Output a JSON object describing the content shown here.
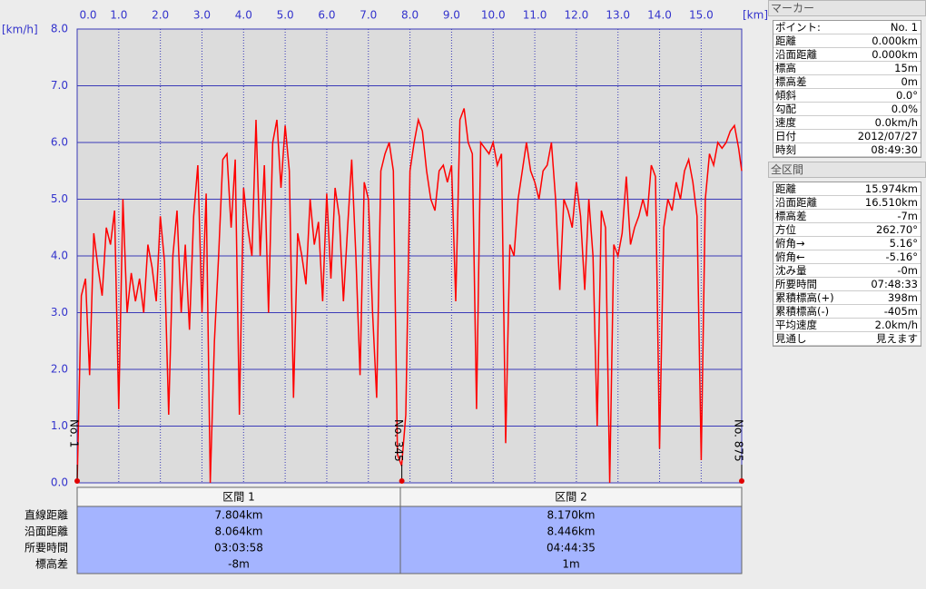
{
  "chart_data": {
    "type": "line",
    "y_unit": "[km/h]",
    "x_unit": "[km]",
    "color": "#ff0000",
    "grid": true,
    "xlim": [
      0,
      15.974
    ],
    "ylim": [
      0,
      8
    ],
    "xticks": [
      {
        "value": 0,
        "label": "0.0"
      },
      {
        "value": 1,
        "label": "1.0"
      },
      {
        "value": 2,
        "label": "2.0"
      },
      {
        "value": 3,
        "label": "3.0"
      },
      {
        "value": 4,
        "label": "4.0"
      },
      {
        "value": 5,
        "label": "5.0"
      },
      {
        "value": 6,
        "label": "6.0"
      },
      {
        "value": 7,
        "label": "7.0"
      },
      {
        "value": 8,
        "label": "8.0"
      },
      {
        "value": 9,
        "label": "9.0"
      },
      {
        "value": 10,
        "label": "10.0"
      },
      {
        "value": 11,
        "label": "11.0"
      },
      {
        "value": 12,
        "label": "12.0"
      },
      {
        "value": 13,
        "label": "13.0"
      },
      {
        "value": 14,
        "label": "14.0"
      },
      {
        "value": 15,
        "label": "15.0"
      }
    ],
    "yticks": [
      {
        "value": 0,
        "label": "0.0"
      },
      {
        "value": 1,
        "label": "1.0"
      },
      {
        "value": 2,
        "label": "2.0"
      },
      {
        "value": 3,
        "label": "3.0"
      },
      {
        "value": 4,
        "label": "4.0"
      },
      {
        "value": 5,
        "label": "5.0"
      },
      {
        "value": 6,
        "label": "6.0"
      },
      {
        "value": 7,
        "label": "7.0"
      },
      {
        "value": 8,
        "label": "8.0"
      }
    ],
    "x": [
      0,
      0.1,
      0.2,
      0.3,
      0.4,
      0.5,
      0.6,
      0.7,
      0.8,
      0.9,
      1.0,
      1.1,
      1.2,
      1.3,
      1.4,
      1.5,
      1.6,
      1.7,
      1.8,
      1.9,
      2.0,
      2.1,
      2.2,
      2.3,
      2.4,
      2.5,
      2.6,
      2.7,
      2.8,
      2.9,
      3.0,
      3.1,
      3.2,
      3.3,
      3.4,
      3.5,
      3.6,
      3.7,
      3.8,
      3.9,
      4.0,
      4.1,
      4.2,
      4.3,
      4.4,
      4.5,
      4.6,
      4.7,
      4.8,
      4.9,
      5.0,
      5.1,
      5.2,
      5.3,
      5.4,
      5.5,
      5.6,
      5.7,
      5.8,
      5.9,
      6.0,
      6.1,
      6.2,
      6.3,
      6.4,
      6.5,
      6.6,
      6.7,
      6.8,
      6.9,
      7.0,
      7.1,
      7.2,
      7.3,
      7.4,
      7.5,
      7.6,
      7.7,
      7.8,
      7.9,
      8.0,
      8.1,
      8.2,
      8.3,
      8.4,
      8.5,
      8.6,
      8.7,
      8.8,
      8.9,
      9.0,
      9.1,
      9.2,
      9.3,
      9.4,
      9.5,
      9.6,
      9.7,
      9.8,
      9.9,
      10.0,
      10.1,
      10.2,
      10.3,
      10.4,
      10.5,
      10.6,
      10.7,
      10.8,
      10.9,
      11.0,
      11.1,
      11.2,
      11.3,
      11.4,
      11.5,
      11.6,
      11.7,
      11.8,
      11.9,
      12.0,
      12.1,
      12.2,
      12.3,
      12.4,
      12.5,
      12.6,
      12.7,
      12.8,
      12.9,
      13.0,
      13.1,
      13.2,
      13.3,
      13.4,
      13.5,
      13.6,
      13.7,
      13.8,
      13.9,
      14.0,
      14.1,
      14.2,
      14.3,
      14.4,
      14.5,
      14.6,
      14.7,
      14.8,
      14.9,
      15.0,
      15.1,
      15.2,
      15.3,
      15.4,
      15.5,
      15.6,
      15.7,
      15.8,
      15.9,
      15.974
    ],
    "values": [
      0,
      3.3,
      3.6,
      1.9,
      4.4,
      3.8,
      3.3,
      4.5,
      4.2,
      4.8,
      1.3,
      5.0,
      3.0,
      3.7,
      3.2,
      3.6,
      3.0,
      4.2,
      3.8,
      3.2,
      4.7,
      3.9,
      1.2,
      4.0,
      4.8,
      3.0,
      4.2,
      2.7,
      4.7,
      5.6,
      3.0,
      5.1,
      0.0,
      2.5,
      4.0,
      5.7,
      5.8,
      4.5,
      5.7,
      1.2,
      5.2,
      4.5,
      4.0,
      6.4,
      4.0,
      5.6,
      3.0,
      6.0,
      6.4,
      5.2,
      6.3,
      5.5,
      1.5,
      4.4,
      4.0,
      3.5,
      5.0,
      4.2,
      4.6,
      3.2,
      5.1,
      3.6,
      5.2,
      4.7,
      3.2,
      4.5,
      5.7,
      4.0,
      1.9,
      5.3,
      5.0,
      3.0,
      1.5,
      5.5,
      5.8,
      6.0,
      5.5,
      0.5,
      0.3,
      1.2,
      5.5,
      6.0,
      6.4,
      6.2,
      5.5,
      5.0,
      4.8,
      5.5,
      5.6,
      5.3,
      5.6,
      3.2,
      6.4,
      6.6,
      6.0,
      5.8,
      1.3,
      6.0,
      5.9,
      5.8,
      6.0,
      5.6,
      5.8,
      0.7,
      4.2,
      4.0,
      5.0,
      5.5,
      6.0,
      5.5,
      5.3,
      5.0,
      5.5,
      5.6,
      6.0,
      5.0,
      3.4,
      5.0,
      4.8,
      4.5,
      5.3,
      4.7,
      3.4,
      5.0,
      4.0,
      1.0,
      4.8,
      4.5,
      0.0,
      4.2,
      4.0,
      4.4,
      5.4,
      4.2,
      4.5,
      4.7,
      5.0,
      4.7,
      5.6,
      5.4,
      0.6,
      4.5,
      5.0,
      4.8,
      5.3,
      5.0,
      5.5,
      5.7,
      5.3,
      4.7,
      0.4,
      5.0,
      5.8,
      5.6,
      6.0,
      5.9,
      6.0,
      6.2,
      6.3,
      5.9,
      5.5
    ],
    "markers": [
      {
        "label": "No. 1",
        "x": 0
      },
      {
        "label": "No. 345",
        "x": 7.804
      },
      {
        "label": "No. 875",
        "x": 15.974
      }
    ]
  },
  "sections": {
    "headers": [
      "区間 1",
      "区間 2"
    ],
    "rows": [
      {
        "label": "直線距離",
        "values": [
          "7.804km",
          "8.170km"
        ]
      },
      {
        "label": "沿面距離",
        "values": [
          "8.064km",
          "8.446km"
        ]
      },
      {
        "label": "所要時間",
        "values": [
          "03:03:58",
          "04:44:35"
        ]
      },
      {
        "label": "標高差",
        "values": [
          "-8m",
          "1m"
        ]
      }
    ]
  },
  "marker_panel": {
    "title": "マーカー",
    "rows": [
      [
        "ポイント:",
        "No. 1"
      ],
      [
        "距離",
        "0.000km"
      ],
      [
        "沿面距離",
        "0.000km"
      ],
      [
        "標高",
        "15m"
      ],
      [
        "標高差",
        "0m"
      ],
      [
        "傾斜",
        "0.0°"
      ],
      [
        "勾配",
        "0.0%"
      ],
      [
        "速度",
        "0.0km/h"
      ],
      [
        "日付",
        "2012/07/27"
      ],
      [
        "時刻",
        "08:49:30"
      ]
    ]
  },
  "total_panel": {
    "title": "全区間",
    "rows": [
      [
        "距離",
        "15.974km"
      ],
      [
        "沿面距離",
        "16.510km"
      ],
      [
        "標高差",
        "-7m"
      ],
      [
        "方位",
        "262.70°"
      ],
      [
        "俯角→",
        "5.16°"
      ],
      [
        "俯角←",
        "-5.16°"
      ],
      [
        "沈み量",
        "-0m"
      ],
      [
        "所要時間",
        "07:48:33"
      ],
      [
        "累積標高(+)",
        "398m"
      ],
      [
        "累積標高(-)",
        "-405m"
      ],
      [
        "平均速度",
        "2.0km/h"
      ],
      [
        "見通し",
        "見えます"
      ]
    ]
  }
}
